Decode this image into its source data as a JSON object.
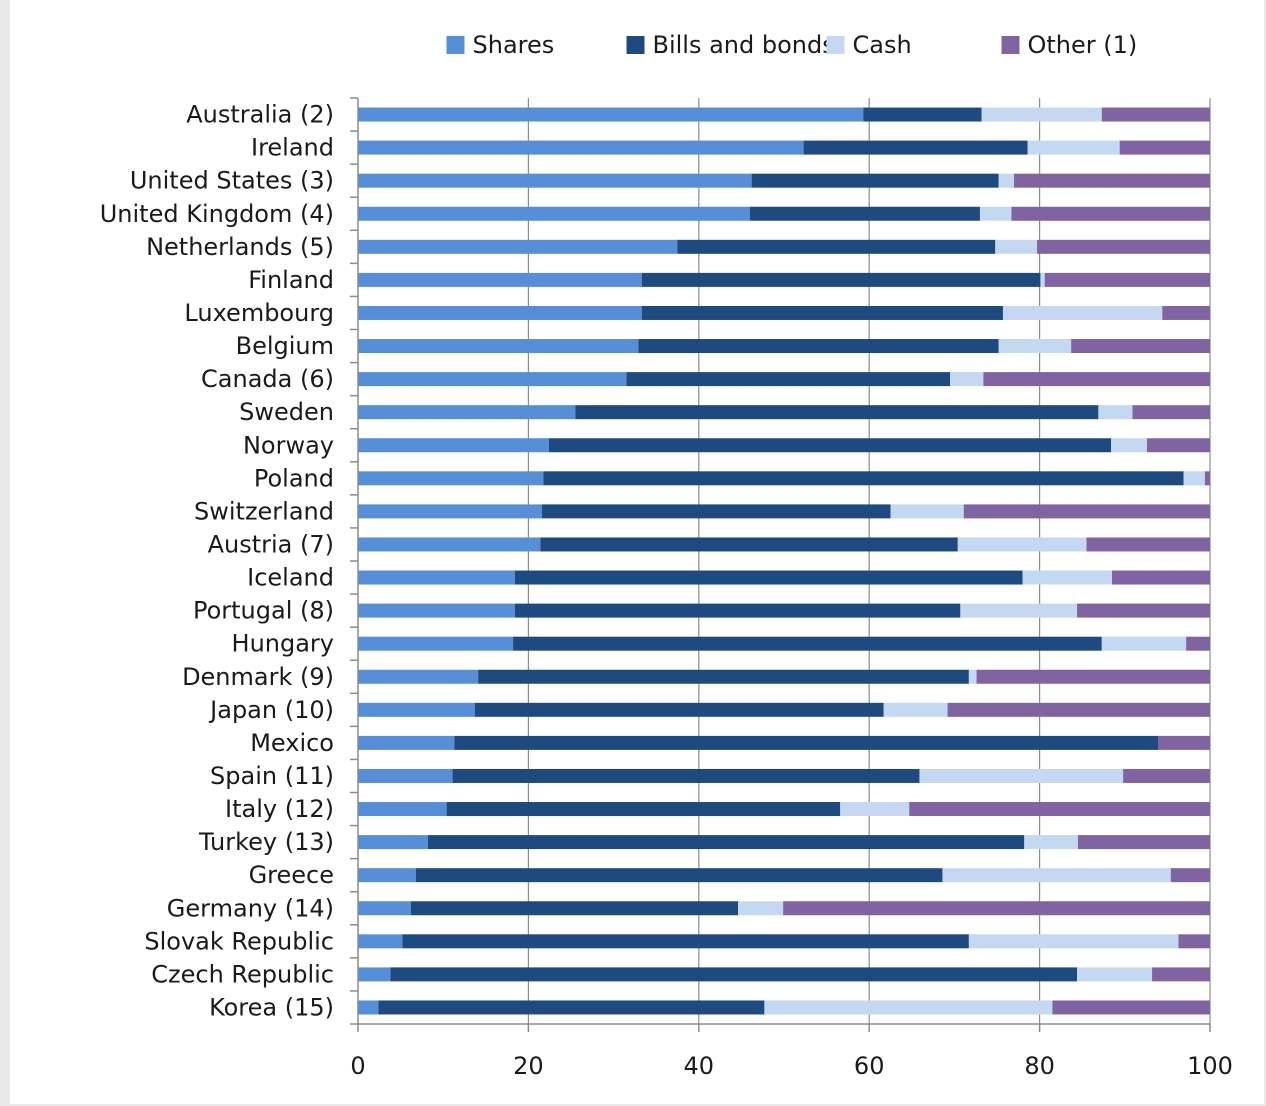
{
  "chart_data": {
    "type": "bar",
    "orientation": "horizontal",
    "stacked": true,
    "legend_position": "top",
    "grid": true,
    "xlim": [
      0,
      100
    ],
    "xticks": [
      "0",
      "20",
      "40",
      "60",
      "80",
      "100"
    ],
    "colors": {
      "Shares": "#568fd8",
      "Bills and bonds": "#1f4a7f",
      "Cash": "#c5d8f1",
      "Other (1)": "#8064a2"
    },
    "categories": [
      "Australia (2)",
      "Ireland",
      "United States (3)",
      "United Kingdom (4)",
      "Netherlands (5)",
      "Finland",
      "Luxembourg",
      "Belgium",
      "Canada (6)",
      "Sweden",
      "Norway",
      "Poland",
      "Switzerland",
      "Austria (7)",
      "Iceland",
      "Portugal (8)",
      "Hungary",
      "Denmark (9)",
      "Japan (10)",
      "Mexico",
      "Spain (11)",
      "Italy (12)",
      "Turkey (13)",
      "Greece",
      "Germany (14)",
      "Slovak Republic",
      "Czech Republic",
      "Korea (15)"
    ],
    "series": [
      {
        "name": "Shares",
        "values": [
          59.3,
          52.3,
          46.2,
          46.0,
          37.5,
          33.3,
          33.3,
          32.9,
          31.5,
          25.5,
          22.4,
          21.8,
          21.6,
          21.4,
          18.4,
          18.4,
          18.2,
          14.1,
          13.7,
          11.3,
          11.1,
          10.4,
          8.2,
          6.8,
          6.2,
          5.2,
          3.8,
          2.4
        ]
      },
      {
        "name": "Bills and bonds",
        "values": [
          13.9,
          26.3,
          29.0,
          27.0,
          37.3,
          46.8,
          42.4,
          42.3,
          38.0,
          61.4,
          66.0,
          75.3,
          40.9,
          49.0,
          59.6,
          52.3,
          69.1,
          57.6,
          48.0,
          82.6,
          54.8,
          46.2,
          70.0,
          61.8,
          38.4,
          66.5,
          80.6,
          45.3
        ]
      },
      {
        "name": "Cash",
        "values": [
          14.1,
          10.8,
          1.8,
          3.7,
          4.9,
          0.5,
          18.7,
          8.5,
          3.9,
          4.0,
          4.2,
          2.5,
          8.6,
          15.1,
          10.5,
          13.7,
          9.9,
          0.9,
          7.5,
          0.0,
          23.9,
          8.1,
          6.3,
          26.8,
          5.3,
          24.6,
          8.8,
          33.8
        ]
      },
      {
        "name": "Other (1)",
        "values": [
          12.7,
          10.6,
          23.0,
          23.3,
          20.3,
          19.4,
          5.6,
          16.3,
          26.6,
          9.1,
          7.4,
          0.6,
          28.9,
          14.5,
          11.5,
          15.6,
          2.8,
          27.4,
          30.8,
          6.1,
          10.2,
          35.3,
          15.5,
          4.6,
          50.1,
          3.7,
          6.8,
          18.5
        ]
      }
    ]
  }
}
